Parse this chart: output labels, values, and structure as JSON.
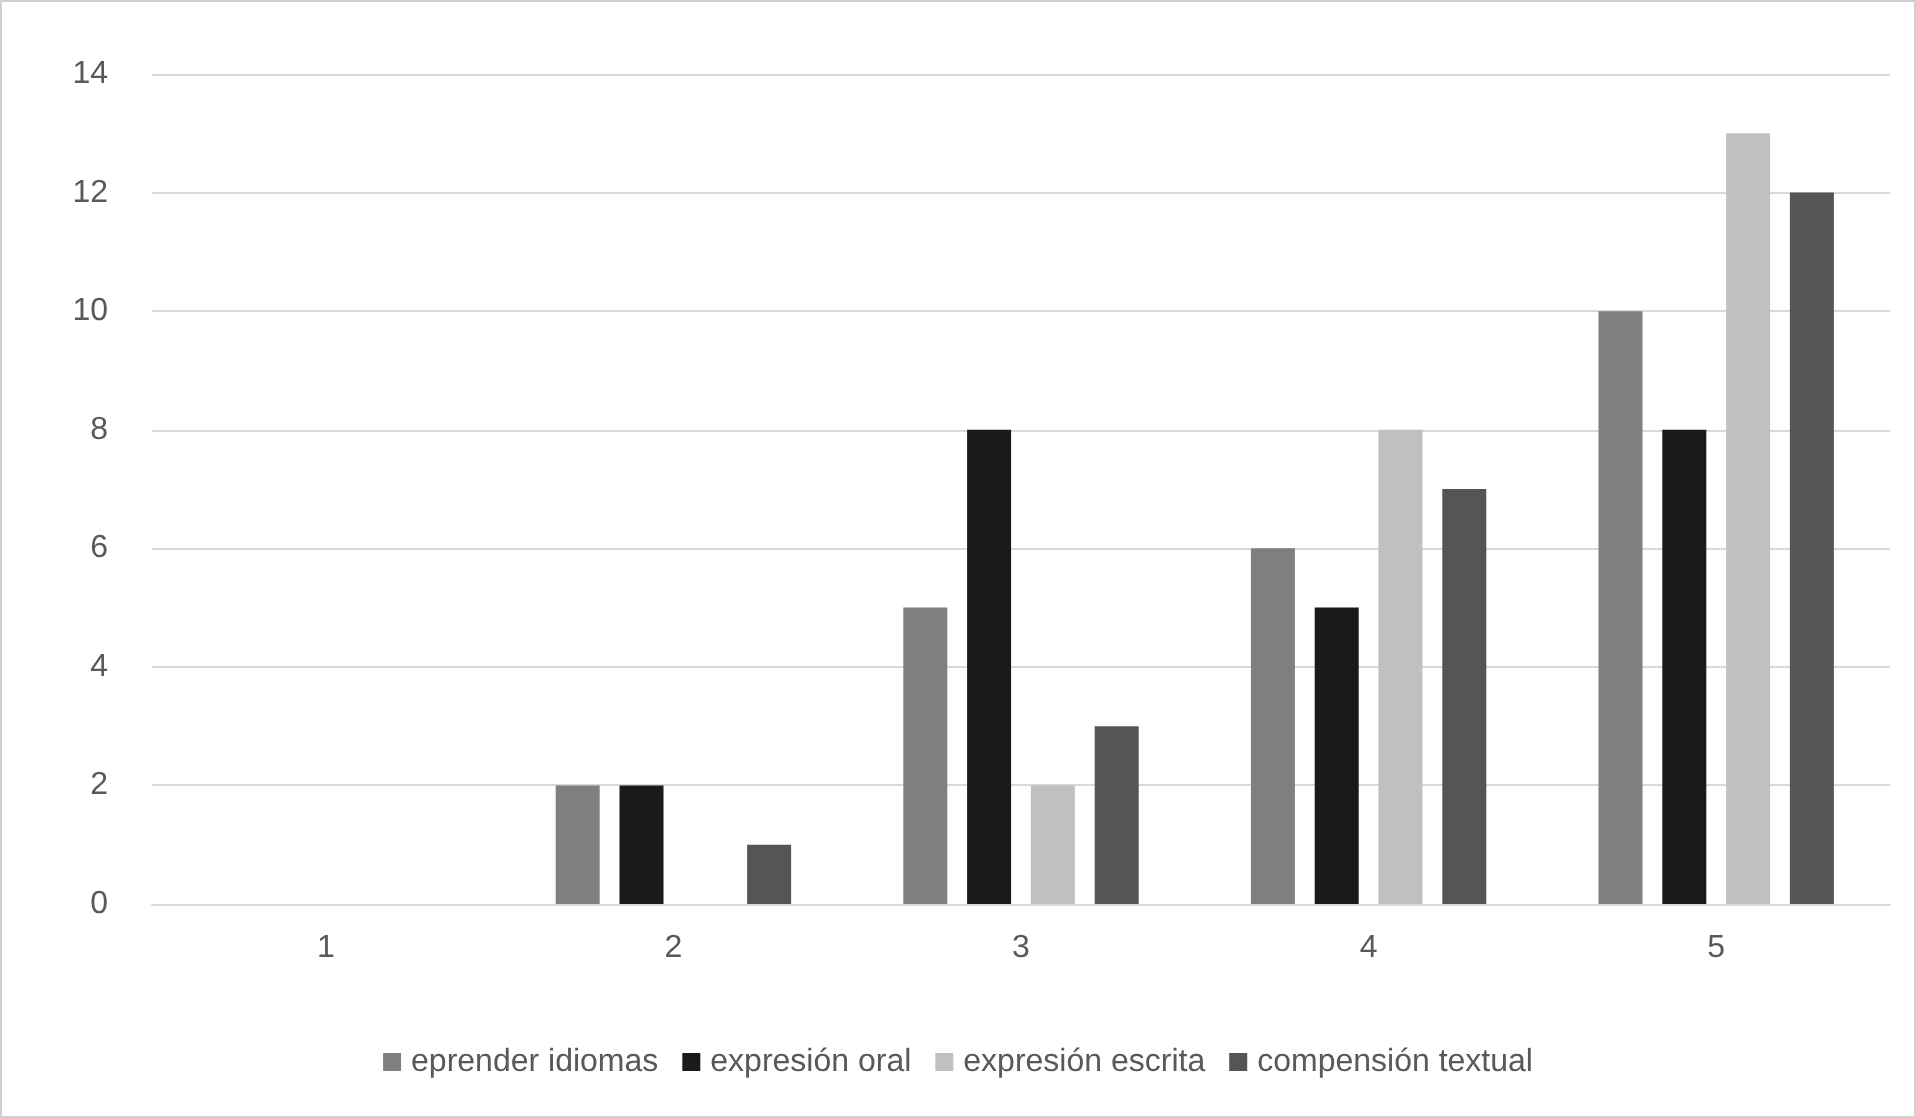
{
  "chart_data": {
    "type": "bar",
    "categories": [
      "1",
      "2",
      "3",
      "4",
      "5"
    ],
    "series": [
      {
        "name": "eprender idiomas",
        "color": "#7f7f7f",
        "values": [
          0,
          2,
          5,
          6,
          10
        ]
      },
      {
        "name": "expresión oral",
        "color": "#1a1a1a",
        "values": [
          0,
          2,
          8,
          5,
          8
        ]
      },
      {
        "name": "expresión escrita",
        "color": "#c0c0c0",
        "values": [
          0,
          0,
          2,
          8,
          13
        ]
      },
      {
        "name": "compensión textual",
        "color": "#555555",
        "values": [
          0,
          1,
          3,
          7,
          12
        ]
      }
    ],
    "ylim": [
      0,
      14
    ],
    "yticks": [
      0,
      2,
      4,
      6,
      8,
      10,
      12,
      14
    ],
    "grid": "y",
    "legend": "bottom"
  }
}
